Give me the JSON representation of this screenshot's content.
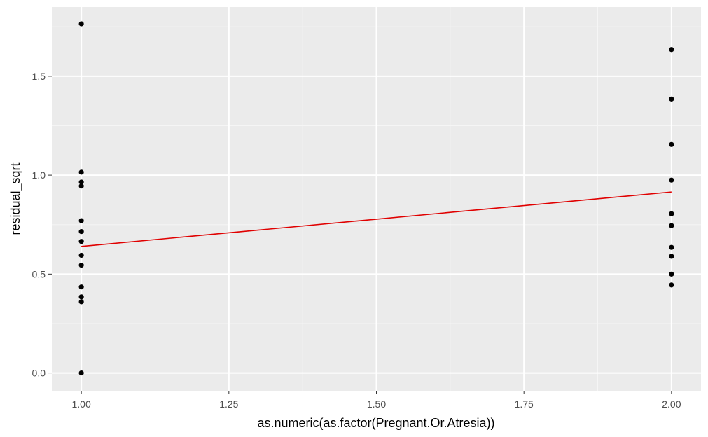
{
  "chart_data": {
    "type": "scatter",
    "xlabel": "as.numeric(as.factor(Pregnant.Or.Atresia))",
    "ylabel": "residual_sqrt",
    "xlim": [
      0.95,
      2.05
    ],
    "ylim": [
      -0.09,
      1.85
    ],
    "x_ticks": [
      1.0,
      1.25,
      1.5,
      1.75,
      2.0
    ],
    "x_tick_labels": [
      "1.00",
      "1.25",
      "1.50",
      "1.75",
      "2.00"
    ],
    "y_ticks": [
      0.0,
      0.5,
      1.0,
      1.5
    ],
    "y_tick_labels": [
      "0.0",
      "0.5",
      "1.0",
      "1.5"
    ],
    "grid": true,
    "legend": "none",
    "series": [
      {
        "type": "scatter",
        "color": "#000000",
        "points": [
          [
            1,
            1.765
          ],
          [
            1,
            1.015
          ],
          [
            1,
            0.965
          ],
          [
            1,
            0.945
          ],
          [
            1,
            0.77
          ],
          [
            1,
            0.715
          ],
          [
            1,
            0.665
          ],
          [
            1,
            0.595
          ],
          [
            1,
            0.545
          ],
          [
            1,
            0.435
          ],
          [
            1,
            0.385
          ],
          [
            1,
            0.36
          ],
          [
            1,
            0.0
          ],
          [
            2,
            1.635
          ],
          [
            2,
            1.385
          ],
          [
            2,
            1.155
          ],
          [
            2,
            0.975
          ],
          [
            2,
            0.805
          ],
          [
            2,
            0.745
          ],
          [
            2,
            0.635
          ],
          [
            2,
            0.59
          ],
          [
            2,
            0.5
          ],
          [
            2,
            0.445
          ]
        ]
      },
      {
        "type": "line",
        "color": "#e00000",
        "points": [
          [
            1,
            0.64
          ],
          [
            2,
            0.915
          ]
        ]
      }
    ],
    "colors": {
      "panel": "#ebebeb",
      "grid_major": "#ffffff",
      "grid_minor": "#f5f5f5",
      "tick_label": "#4d4d4d"
    }
  }
}
